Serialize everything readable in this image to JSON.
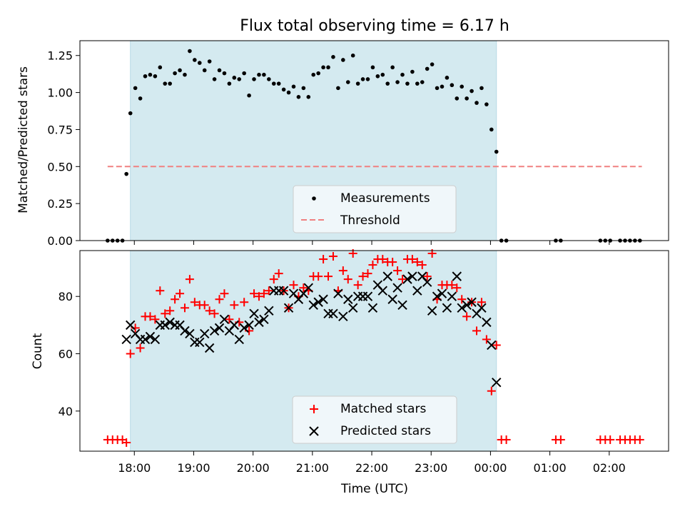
{
  "chart_data": [
    {
      "type": "scatter",
      "title": "Flux total observing time = 6.17 h",
      "ylabel": "Matched/Predicted stars",
      "xlabel": "",
      "ylim": [
        0,
        1.35
      ],
      "yticks": [
        "0.00",
        "0.25",
        "0.50",
        "0.75",
        "1.00",
        "1.25"
      ],
      "ytick_values": [
        0,
        0.25,
        0.5,
        0.75,
        1.0,
        1.25
      ],
      "xlim": [
        "17:05",
        "03:00"
      ],
      "x_unit": "time of day (UTC), times past midnight are the following day",
      "shaded_interval": [
        "17:56",
        "00:06"
      ],
      "shade_color": "#d4eaf0",
      "legend_position": "lower center",
      "series": [
        {
          "name": "Measurements",
          "kind": "points",
          "color": "#000000",
          "x": [
            "17:33",
            "17:38",
            "17:43",
            "17:48",
            "17:52",
            "17:56",
            "18:01",
            "18:06",
            "18:11",
            "18:16",
            "18:21",
            "18:26",
            "18:31",
            "18:36",
            "18:41",
            "18:46",
            "18:51",
            "18:56",
            "19:01",
            "19:06",
            "19:11",
            "19:16",
            "19:21",
            "19:26",
            "19:31",
            "19:36",
            "19:41",
            "19:46",
            "19:51",
            "19:56",
            "20:01",
            "20:06",
            "20:11",
            "20:16",
            "20:21",
            "20:26",
            "20:31",
            "20:36",
            "20:41",
            "20:46",
            "20:51",
            "20:56",
            "21:01",
            "21:06",
            "21:11",
            "21:16",
            "21:21",
            "21:26",
            "21:31",
            "21:36",
            "21:41",
            "21:46",
            "21:51",
            "21:56",
            "22:01",
            "22:06",
            "22:11",
            "22:16",
            "22:21",
            "22:26",
            "22:31",
            "22:36",
            "22:41",
            "22:46",
            "22:51",
            "22:56",
            "23:01",
            "23:06",
            "23:11",
            "23:16",
            "23:21",
            "23:26",
            "23:31",
            "23:36",
            "23:41",
            "23:46",
            "23:51",
            "23:56",
            "00:01",
            "00:06",
            "00:11",
            "00:16",
            "01:06",
            "01:11",
            "01:51",
            "01:56",
            "02:01",
            "02:11",
            "02:16",
            "02:21",
            "02:26",
            "02:31"
          ],
          "y": [
            0,
            0,
            0,
            0,
            0.45,
            0.86,
            1.03,
            0.96,
            1.11,
            1.12,
            1.11,
            1.17,
            1.06,
            1.06,
            1.13,
            1.15,
            1.12,
            1.28,
            1.22,
            1.2,
            1.15,
            1.21,
            1.09,
            1.15,
            1.13,
            1.06,
            1.1,
            1.09,
            1.13,
            0.98,
            1.09,
            1.12,
            1.12,
            1.09,
            1.06,
            1.06,
            1.02,
            1.0,
            1.04,
            0.97,
            1.03,
            0.97,
            1.12,
            1.13,
            1.17,
            1.17,
            1.24,
            1.03,
            1.22,
            1.07,
            1.25,
            1.06,
            1.09,
            1.09,
            1.17,
            1.11,
            1.12,
            1.06,
            1.17,
            1.07,
            1.12,
            1.06,
            1.14,
            1.06,
            1.07,
            1.16,
            1.19,
            1.03,
            1.04,
            1.1,
            1.05,
            0.96,
            1.04,
            0.96,
            1.01,
            0.93,
            1.03,
            0.92,
            0.75,
            0.6,
            0,
            0,
            0,
            0,
            0,
            0,
            0,
            0,
            0,
            0,
            0,
            0
          ]
        },
        {
          "name": "Threshold",
          "kind": "dashed-line",
          "color": "#f08080",
          "x": [
            "17:33",
            "02:33"
          ],
          "y": [
            0.5,
            0.5
          ]
        }
      ]
    },
    {
      "type": "scatter",
      "title": "",
      "ylabel": "Count",
      "xlabel": "Time (UTC)",
      "ylim": [
        26,
        96
      ],
      "yticks": [
        "40",
        "60",
        "80"
      ],
      "ytick_values": [
        40,
        60,
        80
      ],
      "xticks": [
        "18:00",
        "19:00",
        "20:00",
        "21:00",
        "22:00",
        "23:00",
        "00:00",
        "01:00",
        "02:00"
      ],
      "xtick_values": [
        "18:00",
        "19:00",
        "20:00",
        "21:00",
        "22:00",
        "23:00",
        "00:00",
        "01:00",
        "02:00"
      ],
      "xlim": [
        "17:05",
        "03:00"
      ],
      "shaded_interval": [
        "17:56",
        "00:06"
      ],
      "legend_position": "lower center",
      "series": [
        {
          "name": "Matched stars",
          "marker": "plus",
          "color": "#ff0000",
          "x": [
            "17:33",
            "17:38",
            "17:43",
            "17:48",
            "17:52",
            "17:56",
            "18:01",
            "18:06",
            "18:11",
            "18:16",
            "18:21",
            "18:26",
            "18:31",
            "18:36",
            "18:41",
            "18:46",
            "18:51",
            "18:56",
            "19:01",
            "19:06",
            "19:11",
            "19:16",
            "19:21",
            "19:26",
            "19:31",
            "19:36",
            "19:41",
            "19:46",
            "19:51",
            "19:56",
            "20:01",
            "20:06",
            "20:11",
            "20:16",
            "20:21",
            "20:26",
            "20:31",
            "20:36",
            "20:41",
            "20:46",
            "20:51",
            "20:56",
            "21:01",
            "21:06",
            "21:11",
            "21:16",
            "21:21",
            "21:26",
            "21:31",
            "21:36",
            "21:41",
            "21:46",
            "21:51",
            "21:56",
            "22:01",
            "22:06",
            "22:11",
            "22:16",
            "22:21",
            "22:26",
            "22:31",
            "22:36",
            "22:41",
            "22:46",
            "22:51",
            "22:56",
            "23:01",
            "23:06",
            "23:11",
            "23:16",
            "23:21",
            "23:26",
            "23:31",
            "23:36",
            "23:41",
            "23:46",
            "23:51",
            "23:56",
            "00:01",
            "00:06",
            "00:11",
            "00:16",
            "01:06",
            "01:11",
            "01:51",
            "01:56",
            "02:01",
            "02:11",
            "02:16",
            "02:21",
            "02:26",
            "02:31"
          ],
          "y": [
            30,
            30,
            30,
            30,
            29,
            60,
            69,
            62,
            73,
            73,
            72,
            82,
            74,
            75,
            79,
            81,
            76,
            86,
            78,
            77,
            77,
            75,
            74,
            79,
            81,
            72,
            77,
            71,
            78,
            68,
            81,
            80,
            81,
            82,
            86,
            88,
            82,
            76,
            84,
            80,
            83,
            82,
            87,
            87,
            93,
            87,
            94,
            82,
            89,
            86,
            95,
            84,
            87,
            88,
            91,
            93,
            93,
            92,
            92,
            89,
            86,
            93,
            93,
            92,
            91,
            87,
            95,
            79,
            84,
            84,
            84,
            83,
            79,
            73,
            78,
            68,
            78,
            65,
            47,
            63,
            30,
            30,
            30,
            30,
            30,
            30,
            30,
            30,
            30,
            30,
            30,
            30
          ]
        },
        {
          "name": "Predicted stars",
          "marker": "x",
          "color": "#000000",
          "x": [
            "17:52",
            "17:56",
            "18:01",
            "18:06",
            "18:11",
            "18:16",
            "18:21",
            "18:26",
            "18:31",
            "18:36",
            "18:41",
            "18:46",
            "18:51",
            "18:56",
            "19:01",
            "19:06",
            "19:11",
            "19:16",
            "19:21",
            "19:26",
            "19:31",
            "19:36",
            "19:41",
            "19:46",
            "19:51",
            "19:56",
            "20:01",
            "20:06",
            "20:11",
            "20:16",
            "20:21",
            "20:26",
            "20:31",
            "20:36",
            "20:41",
            "20:46",
            "20:51",
            "20:56",
            "21:01",
            "21:06",
            "21:11",
            "21:16",
            "21:21",
            "21:26",
            "21:31",
            "21:36",
            "21:41",
            "21:46",
            "21:51",
            "21:56",
            "22:01",
            "22:06",
            "22:11",
            "22:16",
            "22:21",
            "22:26",
            "22:31",
            "22:36",
            "22:41",
            "22:46",
            "22:51",
            "22:56",
            "23:01",
            "23:06",
            "23:11",
            "23:16",
            "23:21",
            "23:26",
            "23:31",
            "23:36",
            "23:41",
            "23:46",
            "23:51",
            "23:56",
            "00:01",
            "00:06"
          ],
          "y": [
            65,
            70,
            67,
            65,
            65,
            66,
            65,
            70,
            70,
            71,
            70,
            70,
            68,
            67,
            64,
            64,
            67,
            62,
            68,
            69,
            72,
            68,
            70,
            65,
            69,
            70,
            74,
            71,
            72,
            75,
            82,
            82,
            82,
            76,
            81,
            79,
            81,
            83,
            77,
            78,
            79,
            74,
            74,
            81,
            73,
            79,
            76,
            80,
            80,
            80,
            76,
            84,
            82,
            87,
            79,
            83,
            77,
            86,
            87,
            82,
            87,
            85,
            75,
            80,
            81,
            76,
            80,
            87,
            76,
            77,
            78,
            74,
            76,
            71,
            63,
            50
          ]
        }
      ]
    }
  ]
}
